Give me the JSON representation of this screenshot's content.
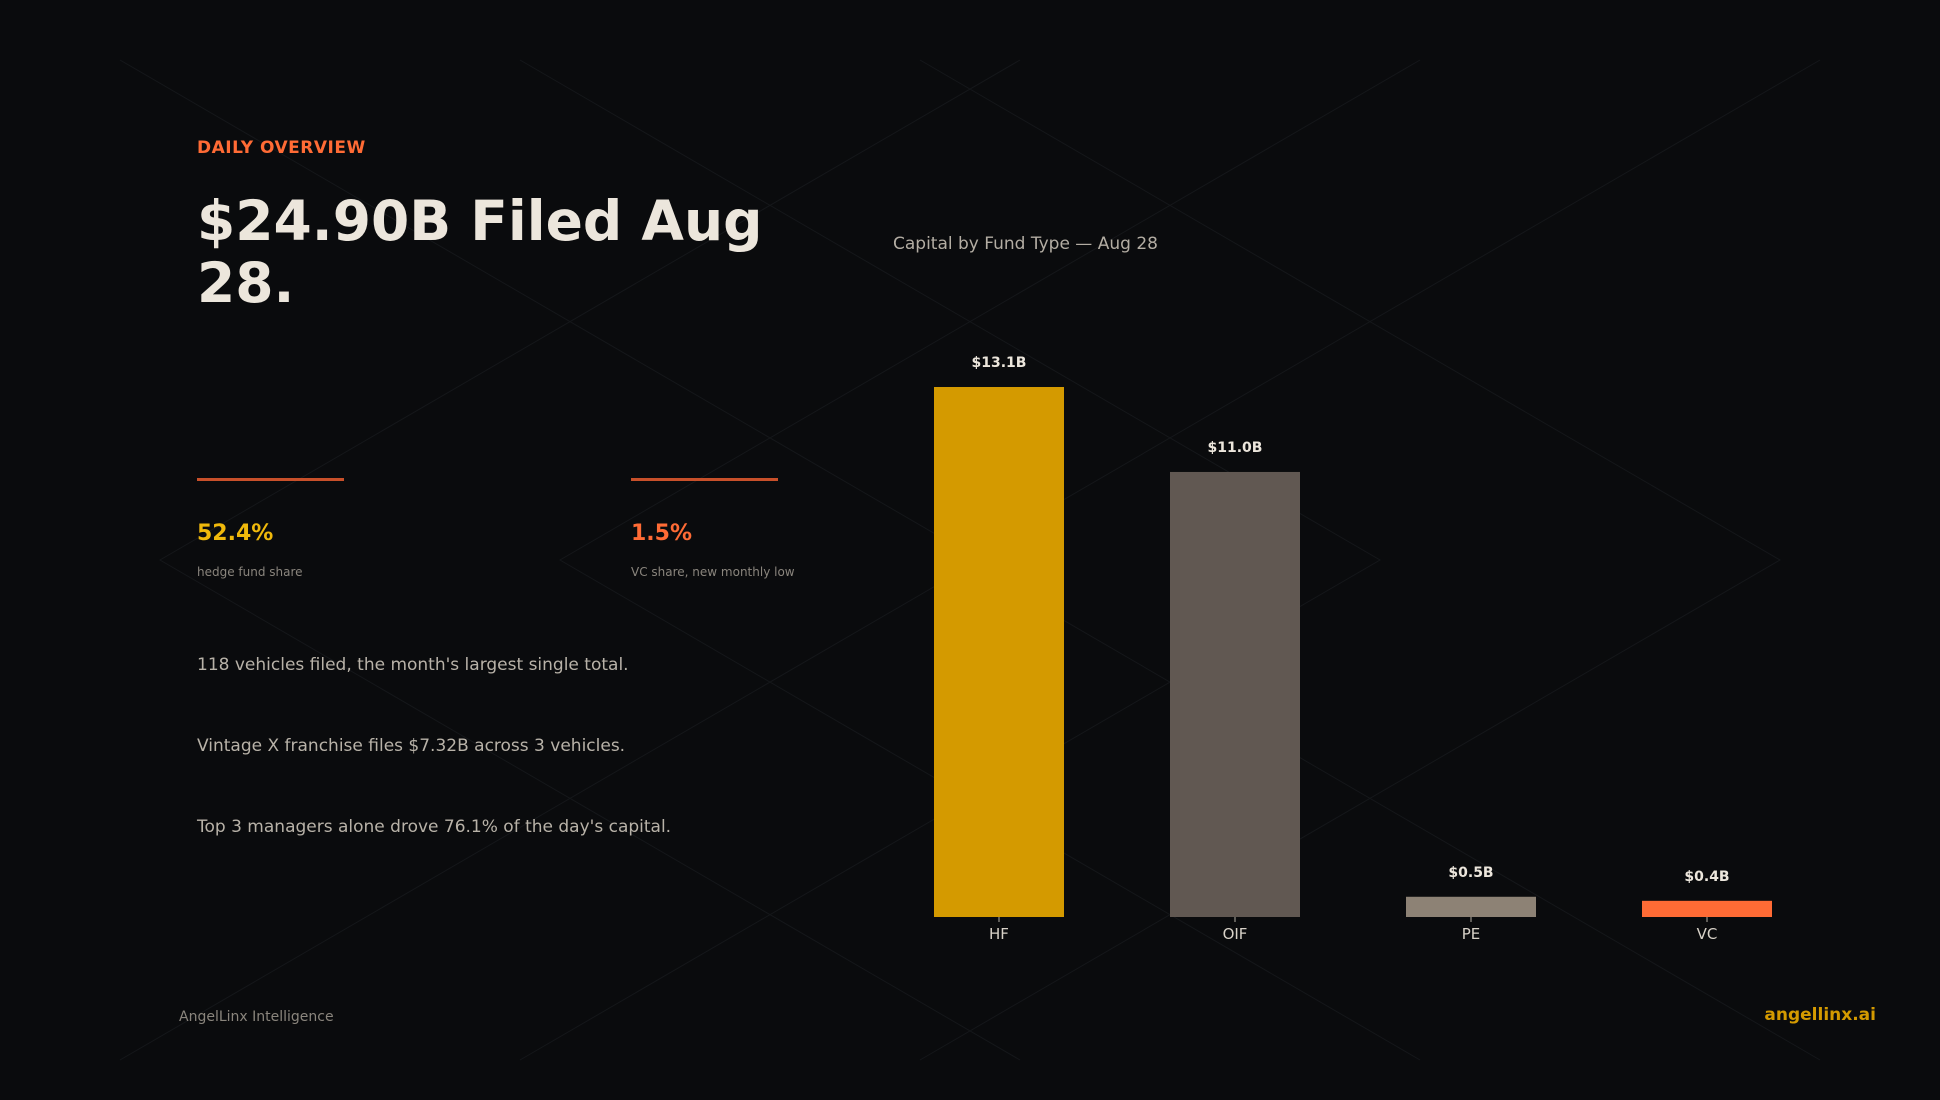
{
  "header": {
    "eyebrow": "DAILY OVERVIEW",
    "headline": "$24.90B Filed Aug 28."
  },
  "stats": [
    {
      "value": "52.4%",
      "label": "hedge fund share",
      "color": "#f0b90b"
    },
    {
      "value": "1.5%",
      "label": "VC share, new monthly low",
      "color": "#ff6b35"
    }
  ],
  "bullets": [
    "118 vehicles filed, the month's largest single total.",
    "Vintage X franchise files $7.32B across 3 vehicles.",
    "Top 3 managers alone drove 76.1% of the day's capital."
  ],
  "footer": {
    "brand": "AngelLinx Intelligence",
    "site": "angellinx.ai"
  },
  "chart_data": {
    "type": "bar",
    "title": "Capital by Fund Type — Aug 28",
    "categories": [
      "HF",
      "OIF",
      "PE",
      "VC"
    ],
    "values": [
      13.1,
      11.0,
      0.5,
      0.4
    ],
    "value_labels": [
      "$13.1B",
      "$11.0B",
      "$0.5B",
      "$0.4B"
    ],
    "colors": [
      "#d49a00",
      "#615852",
      "#8d8275",
      "#ff6b35"
    ],
    "xlabel": "",
    "ylabel": "",
    "ylim": [
      0,
      13.1
    ],
    "grid": false,
    "legend": "none"
  }
}
